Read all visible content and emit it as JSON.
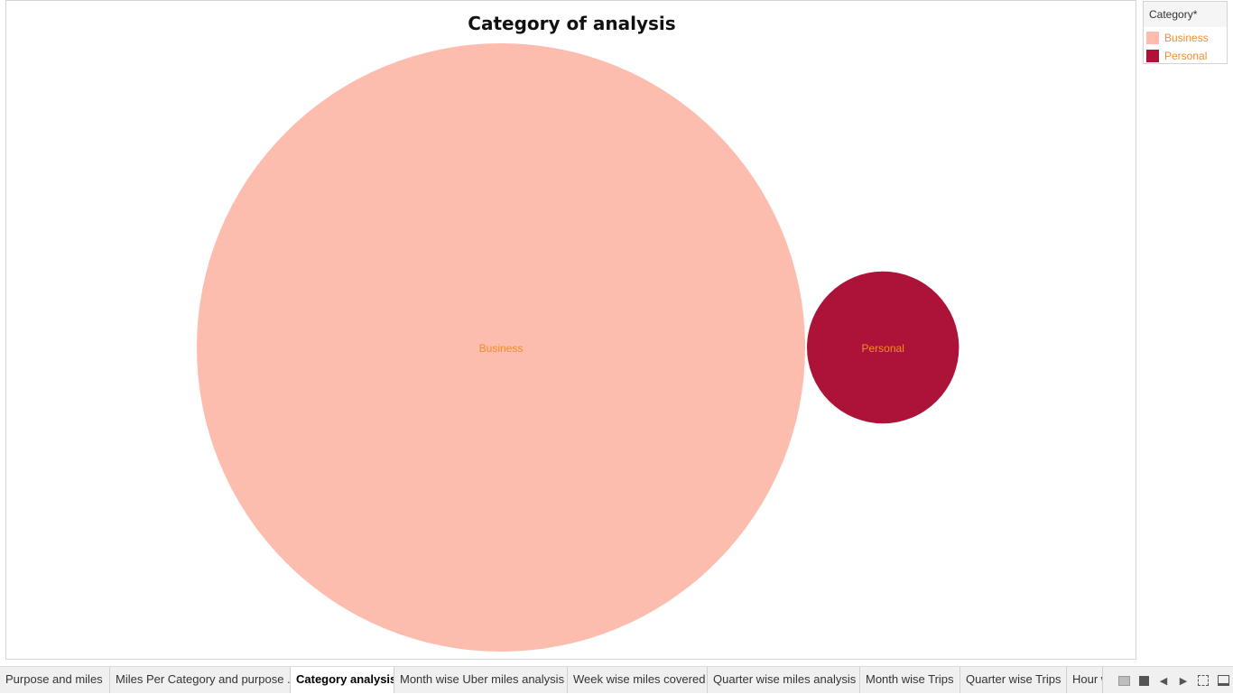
{
  "chart_data": {
    "type": "bubble",
    "title": "Category of analysis",
    "legend_title": "Category*",
    "legend_position": "top-right",
    "categories": [
      "Business",
      "Personal"
    ],
    "values": [
      11488,
      717
    ],
    "colors": [
      "#fcbcae",
      "#ad1238"
    ],
    "label_color": "#f28e2b"
  },
  "legend": {
    "title": "Category*",
    "items": [
      {
        "label": "Business",
        "color": "#fcbcae"
      },
      {
        "label": "Personal",
        "color": "#ad1238"
      }
    ]
  },
  "tabs": [
    {
      "label": "Purpose and miles",
      "active": false
    },
    {
      "label": "Miles Per Category and purpose ...",
      "active": false
    },
    {
      "label": "Category analysis",
      "active": true
    },
    {
      "label": "Month wise Uber miles analysis",
      "active": false
    },
    {
      "label": "Week wise miles covered",
      "active": false
    },
    {
      "label": "Quarter wise miles analysis",
      "active": false
    },
    {
      "label": "Month wise Trips",
      "active": false
    },
    {
      "label": "Quarter wise Trips",
      "active": false
    },
    {
      "label": "Hour wise",
      "active": false
    }
  ],
  "controls": {
    "prev": "◀",
    "next": "▶"
  }
}
